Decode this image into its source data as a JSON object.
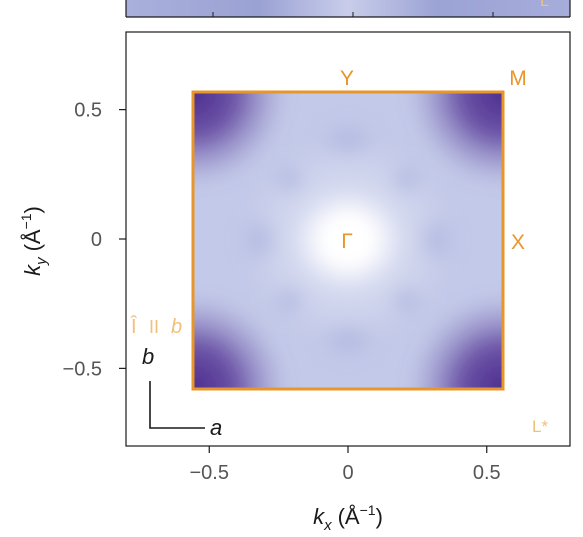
{
  "chart_data": {
    "type": "heatmap",
    "title": "",
    "xlabel": {
      "italic": "k",
      "sub": "x",
      "unit": "(Å",
      "sup": "−1",
      "close": ")"
    },
    "ylabel": {
      "italic": "k",
      "sub": "y",
      "unit": "(Å",
      "sup": "−1",
      "close": ")"
    },
    "xlim": [
      -0.8,
      0.8
    ],
    "ylim": [
      -0.8,
      0.8
    ],
    "xticks": [
      -0.5,
      0,
      0.5
    ],
    "yticks": [
      -0.5,
      0,
      0.5
    ],
    "xtick_labels": [
      "−0.5",
      "0",
      "0.5"
    ],
    "ytick_labels": [
      "−0.5",
      "0",
      "0.5"
    ],
    "brillouin_zone": {
      "kx": [
        -0.57,
        0.53
      ],
      "ky": [
        -0.58,
        0.59
      ],
      "color": "#e8962a"
    },
    "high_symmetry_points": [
      {
        "label": "Γ",
        "kx": 0.0,
        "ky": 0.0
      },
      {
        "label": "X",
        "kx": 0.61,
        "ky": 0.0
      },
      {
        "label": "Y",
        "kx": 0.0,
        "ky": 0.65
      },
      {
        "label": "M",
        "kx": 0.58,
        "ky": 0.65
      }
    ],
    "annotations": {
      "top_strip_label": "L",
      "corner_label": "L*",
      "polarization_symbol": "Î",
      "polarization_parallel": "II",
      "polarization_axis": "b",
      "lattice_axis_vertical": "b",
      "lattice_axis_horizontal": "a"
    },
    "colormap": [
      "#ffffff",
      "#b7bfe2",
      "#5a3d9a"
    ],
    "grid": false
  }
}
